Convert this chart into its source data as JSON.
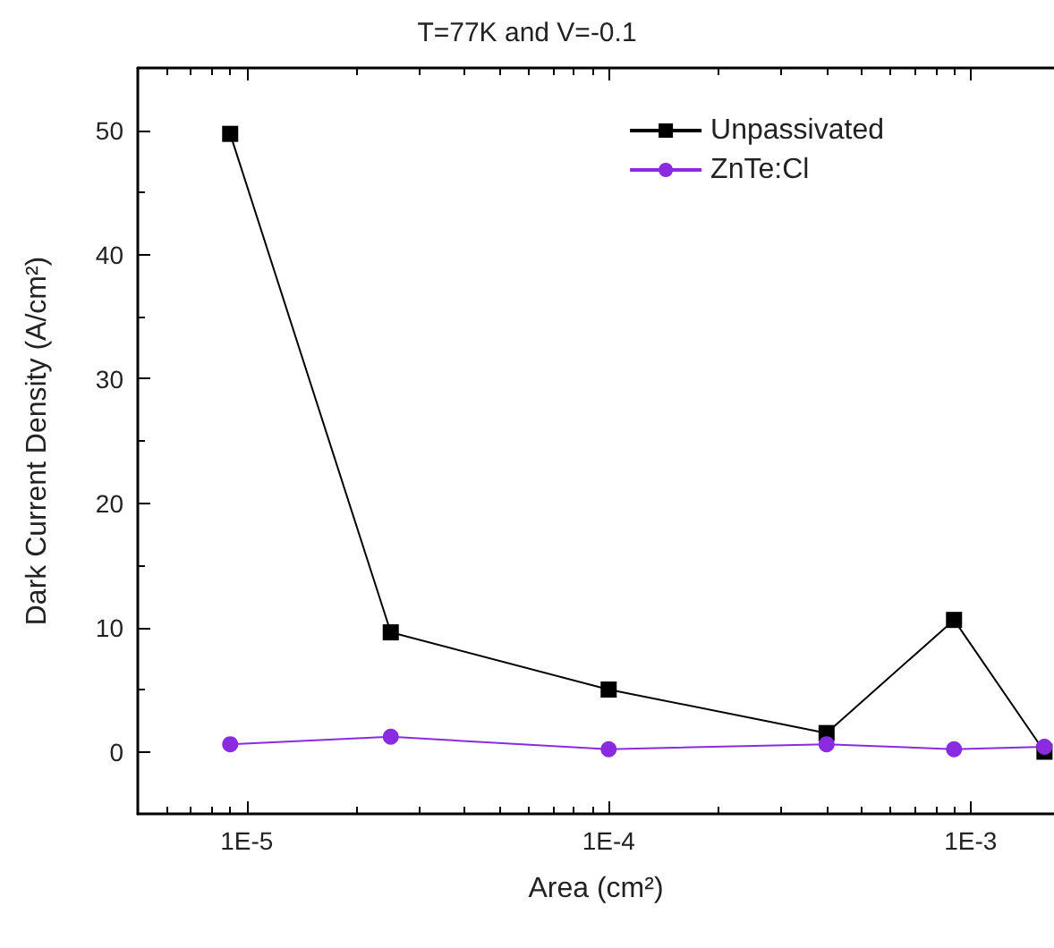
{
  "chart_data": {
    "type": "line",
    "title": "T=77K and V=-0.1",
    "xlabel": "Area (cm²)",
    "ylabel": "Dark Current Density (A/cm²)",
    "x": [
      9e-06,
      2.5e-05,
      0.0001,
      0.0004,
      0.0009,
      0.0016
    ],
    "series": [
      {
        "name": "Unpassivated",
        "color": "#000000",
        "marker": "square",
        "values": [
          49.7,
          9.6,
          5.0,
          1.5,
          10.6,
          0.0
        ]
      },
      {
        "name": "ZnTe:Cl",
        "color": "#8a2be2",
        "marker": "circle",
        "values": [
          0.6,
          1.2,
          0.2,
          0.6,
          0.2,
          0.4
        ]
      }
    ],
    "log": "x",
    "xlim": [
      5e-06,
      0.0017
    ],
    "xticks": [
      {
        "value": 1e-05,
        "label": "1E-5"
      },
      {
        "value": 0.0001,
        "label": "1E-4"
      },
      {
        "value": 0.001,
        "label": "1E-3"
      }
    ],
    "ylim": [
      -5,
      55
    ],
    "yticks": [
      0,
      10,
      20,
      30,
      40,
      50
    ],
    "grid": false,
    "legend": "top right",
    "line_style": "solid"
  }
}
